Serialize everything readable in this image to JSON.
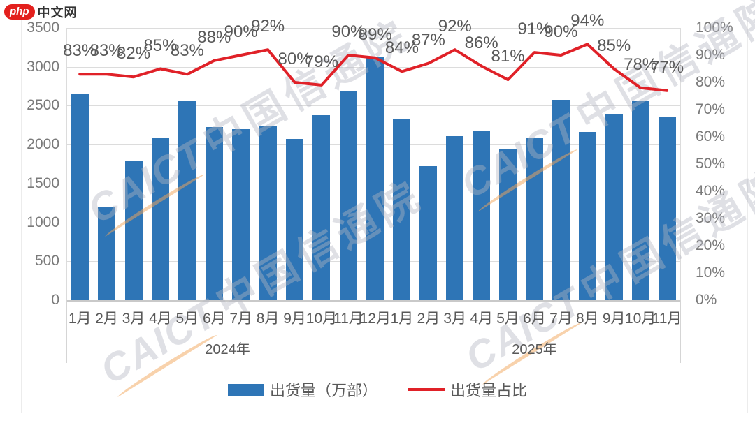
{
  "logo": {
    "badge": "php",
    "site": "中文网"
  },
  "watermark": {
    "brand": "CAICT",
    "name": "中国信通院"
  },
  "legend": {
    "bar": "出货量（万部）",
    "line": "出货量占比"
  },
  "chart_data": {
    "type": "bar+line combo",
    "x_groups": [
      {
        "label": "2024年",
        "months": [
          "1月",
          "2月",
          "3月",
          "4月",
          "5月",
          "6月",
          "7月",
          "8月",
          "9月",
          "10月",
          "11月",
          "12月"
        ]
      },
      {
        "label": "2025年",
        "months": [
          "1月",
          "2月",
          "3月",
          "4月",
          "5月",
          "6月",
          "7月",
          "8月",
          "9月",
          "10月",
          "11月"
        ]
      }
    ],
    "series": [
      {
        "name": "出货量（万部）",
        "type": "bar",
        "axis": "left",
        "color": "#2E75B6",
        "values": [
          2660,
          1190,
          1790,
          2080,
          2560,
          2230,
          2200,
          2240,
          2070,
          2380,
          2690,
          3120,
          2330,
          1720,
          2110,
          2180,
          1950,
          2090,
          2580,
          2160,
          2390,
          2560,
          2350
        ]
      },
      {
        "name": "出货量占比",
        "type": "line",
        "axis": "right",
        "color": "#E02128",
        "values_percent": [
          83,
          83,
          82,
          85,
          83,
          88,
          90,
          92,
          80,
          79,
          90,
          89,
          84,
          87,
          92,
          86,
          81,
          91,
          90,
          94,
          85,
          78,
          77
        ]
      }
    ],
    "data_labels": [
      "83%",
      "83%",
      "82%",
      "85%",
      "83%",
      "88%",
      "90%",
      "92%",
      "80%",
      "79%",
      "90%",
      "89%",
      "84%",
      "87%",
      "92%",
      "86%",
      "81%",
      "91%",
      "90%",
      "94%",
      "85%",
      "78%",
      "77%"
    ],
    "left_axis": {
      "min": 0,
      "max": 3500,
      "step": 500,
      "tick_labels": [
        "3500",
        "3000",
        "2500",
        "2000",
        "1500",
        "1000",
        "500",
        "0"
      ]
    },
    "right_axis": {
      "min": 0,
      "max": 100,
      "step": 10,
      "tick_labels": [
        "100%",
        "90%",
        "80%",
        "70%",
        "60%",
        "50%",
        "40%",
        "30%",
        "20%",
        "10%",
        "0%"
      ]
    },
    "grid": true,
    "legend_position": "bottom"
  }
}
